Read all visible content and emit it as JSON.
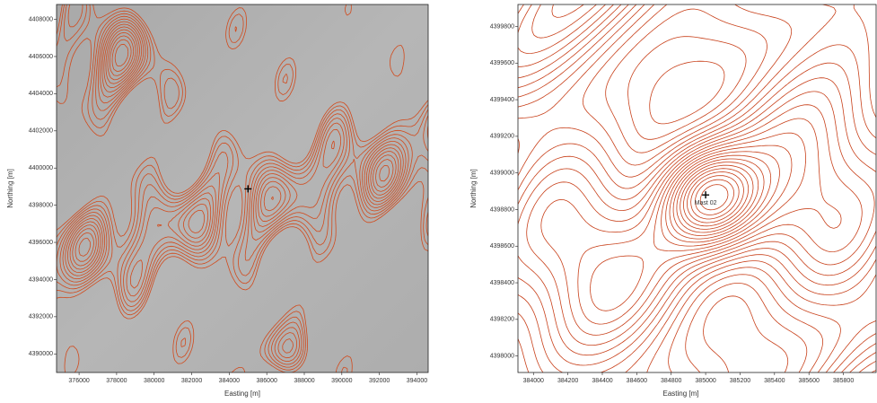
{
  "chart_data": [
    {
      "type": "contour-map",
      "shaded": true,
      "color": "#d24a1c",
      "xlabel": "Easting [m]",
      "ylabel": "Northing [m]",
      "xlim": [
        374800,
        394600
      ],
      "ylim": [
        4389000,
        4408800
      ],
      "xticks": [
        376000,
        378000,
        380000,
        382000,
        384000,
        386000,
        388000,
        390000,
        392000,
        394000
      ],
      "yticks": [
        4390000,
        4392000,
        4394000,
        4396000,
        4398000,
        4400000,
        4402000,
        4404000,
        4406000,
        4408000
      ],
      "markers": [
        {
          "x": 385000,
          "y": 4398880
        }
      ]
    },
    {
      "type": "contour-map",
      "shaded": false,
      "color": "#c8401a",
      "xlabel": "Easting [m]",
      "ylabel": "Northing [m]",
      "xlim": [
        383910,
        385990
      ],
      "ylim": [
        4397910,
        4399920
      ],
      "xticks": [
        384000,
        384200,
        384400,
        384600,
        384800,
        385000,
        385200,
        385400,
        385600,
        385800
      ],
      "yticks": [
        4398000,
        4398200,
        4398400,
        4398600,
        4398800,
        4399000,
        4399200,
        4399400,
        4399600,
        4399800
      ],
      "markers": [
        {
          "x": 385000,
          "y": 4398880,
          "label": "Mast 02"
        }
      ]
    }
  ]
}
